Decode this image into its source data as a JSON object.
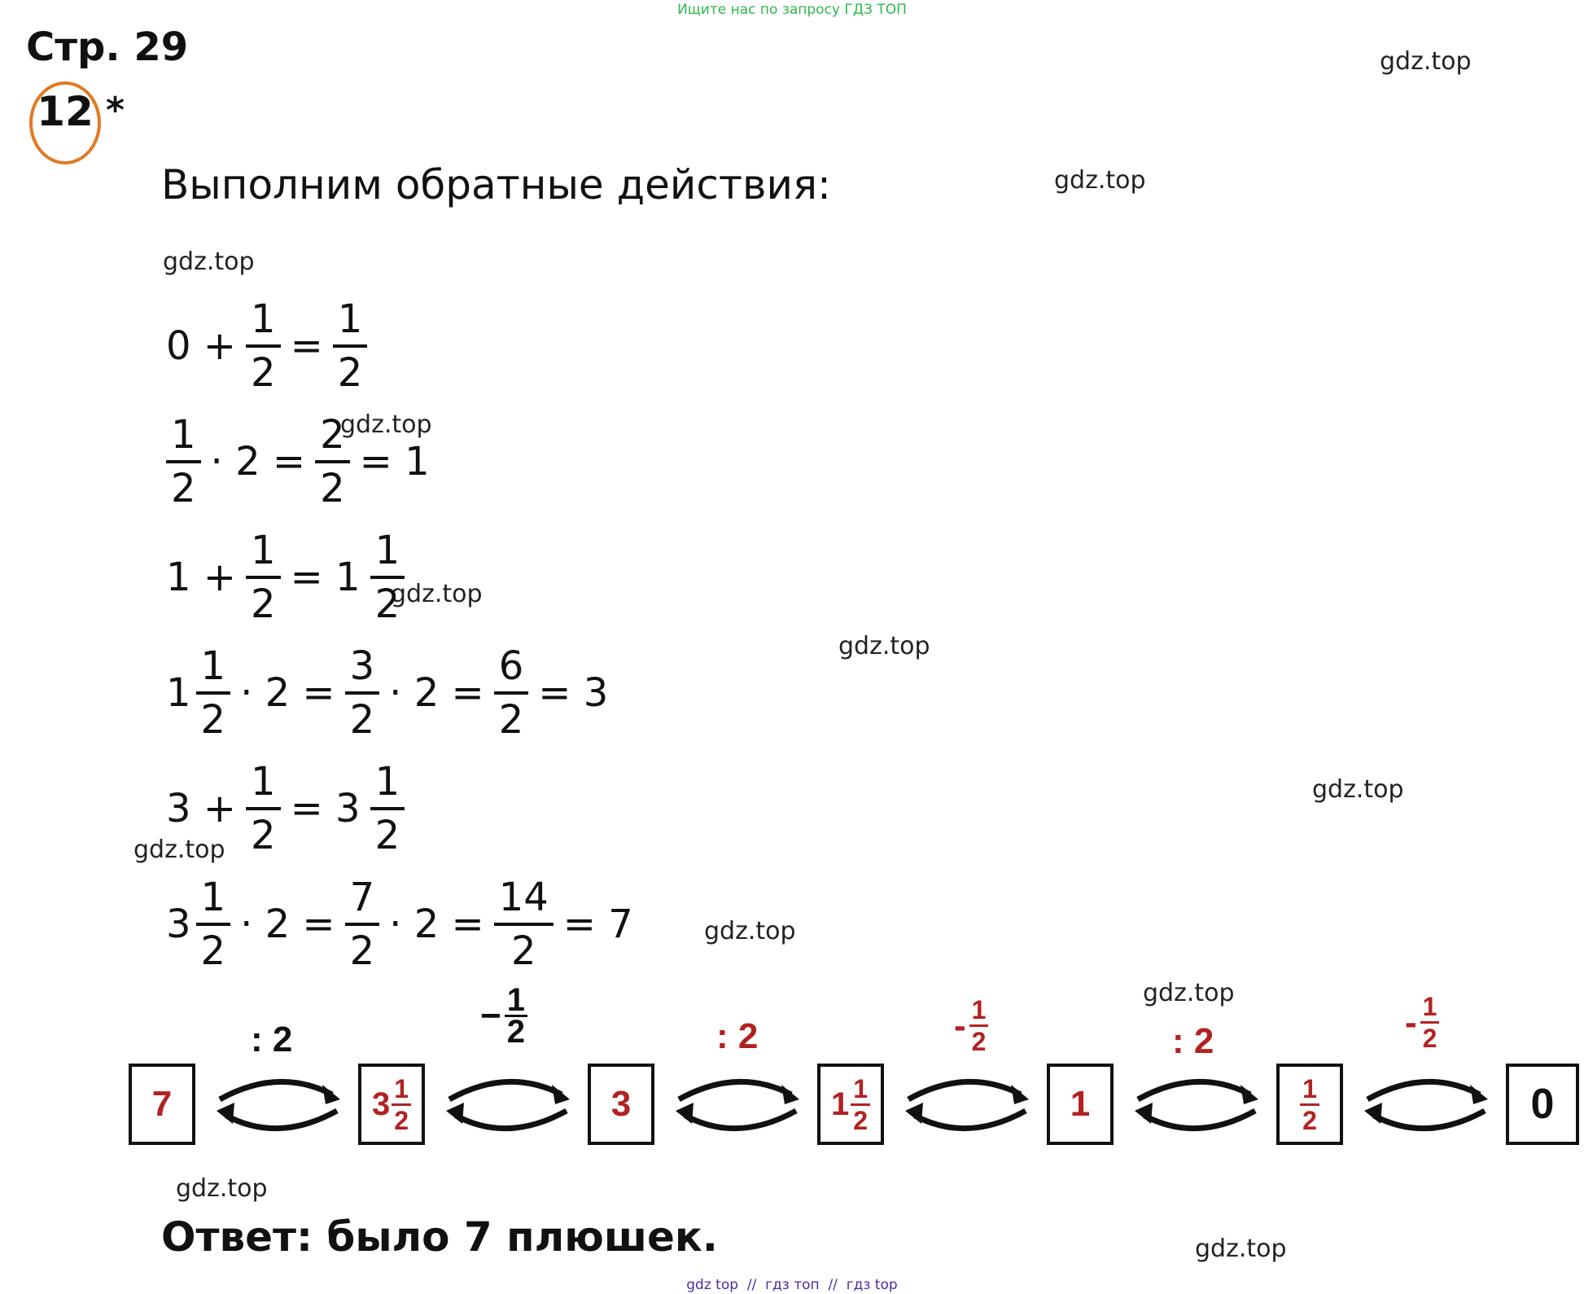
{
  "banner": "Ищите нас по запросу ГДЗ ТОП",
  "page_title": "Стр. 29",
  "task": {
    "number": "12",
    "star": "*"
  },
  "heading": "Выполним обратные действия:",
  "watermark": "gdz.top",
  "eq": {
    "e1": {
      "a": "0 +",
      "f1n": "1",
      "f1d": "2",
      "eq": "=",
      "f2n": "1",
      "f2d": "2"
    },
    "e2": {
      "f1n": "1",
      "f1d": "2",
      "m": "· 2 =",
      "f2n": "2",
      "f2d": "2",
      "r": "= 1"
    },
    "e3": {
      "a": "1 +",
      "f1n": "1",
      "f1d": "2",
      "r": "= 1",
      "f2n": "1",
      "f2d": "2"
    },
    "e4": {
      "w": "1",
      "f1n": "1",
      "f1d": "2",
      "m1": "· 2 =",
      "f2n": "3",
      "f2d": "2",
      "m2": "· 2 =",
      "f3n": "6",
      "f3d": "2",
      "r": "= 3"
    },
    "e5": {
      "a": "3 +",
      "f1n": "1",
      "f1d": "2",
      "r": "= 3",
      "f2n": "1",
      "f2d": "2"
    },
    "e6": {
      "w": "3",
      "f1n": "1",
      "f1d": "2",
      "m1": "· 2 =",
      "f2n": "7",
      "f2d": "2",
      "m2": "· 2 =",
      "f3n": "14",
      "f3d": "2",
      "r": "= 7"
    }
  },
  "diagram": {
    "b1": "7",
    "b2": {
      "whole": "3",
      "num": "1",
      "den": "2"
    },
    "b3": "3",
    "b4": {
      "whole": "1",
      "num": "1",
      "den": "2"
    },
    "b5": "1",
    "b6": {
      "num": "1",
      "den": "2"
    },
    "b7": "0",
    "op1": ": 2",
    "op2": {
      "sign": "−",
      "num": "1",
      "den": "2"
    },
    "op3": ": 2",
    "op4": {
      "sign": "-",
      "num": "1",
      "den": "2"
    },
    "op5": ": 2",
    "op6": {
      "sign": "-",
      "num": "1",
      "den": "2"
    }
  },
  "answer": "Ответ: было 7 плюшек.",
  "footer": "gdz top  //  гдз топ  //  гдз top"
}
